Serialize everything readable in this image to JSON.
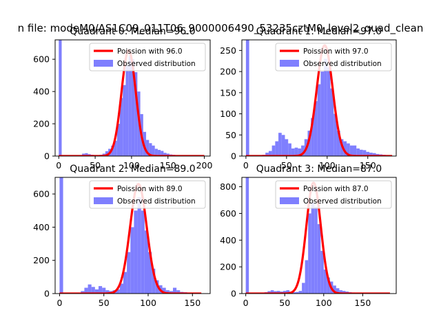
{
  "figure": {
    "suptitle": "n file: modeM0/AS1C09_011T06_9000006490_53235cztM0_level2_quad_clean"
  },
  "colors": {
    "hist": "#7f7ffe",
    "poisson": "#ff0000"
  },
  "chart_data": [
    {
      "type": "bar",
      "title": "Quadrant 0: Median=96.0",
      "xlim": [
        -5,
        208
      ],
      "ylim": [
        0,
        720
      ],
      "xticks": [
        "0",
        "50",
        "100",
        "150",
        "200"
      ],
      "yticks": [
        "0",
        "200",
        "400",
        "600"
      ],
      "legend": [
        "Poission with 96.0",
        "Observed distribution"
      ],
      "bin_width": 4,
      "bins": [
        [
          0,
          720
        ],
        [
          20,
          2
        ],
        [
          24,
          5
        ],
        [
          28,
          6
        ],
        [
          32,
          15
        ],
        [
          36,
          18
        ],
        [
          40,
          12
        ],
        [
          44,
          8
        ],
        [
          48,
          6
        ],
        [
          52,
          5
        ],
        [
          56,
          8
        ],
        [
          60,
          15
        ],
        [
          64,
          30
        ],
        [
          68,
          45
        ],
        [
          72,
          65
        ],
        [
          76,
          95
        ],
        [
          80,
          200
        ],
        [
          84,
          360
        ],
        [
          88,
          440
        ],
        [
          92,
          560
        ],
        [
          96,
          620
        ],
        [
          100,
          600
        ],
        [
          104,
          520
        ],
        [
          108,
          400
        ],
        [
          112,
          260
        ],
        [
          116,
          150
        ],
        [
          120,
          100
        ],
        [
          124,
          80
        ],
        [
          128,
          65
        ],
        [
          132,
          45
        ],
        [
          136,
          38
        ],
        [
          140,
          32
        ],
        [
          144,
          20
        ],
        [
          148,
          15
        ],
        [
          152,
          10
        ],
        [
          156,
          8
        ],
        [
          160,
          6
        ],
        [
          164,
          4
        ],
        [
          168,
          3
        ],
        [
          172,
          2
        ],
        [
          176,
          2
        ],
        [
          180,
          2
        ],
        [
          184,
          1
        ],
        [
          188,
          1
        ],
        [
          192,
          1
        ],
        [
          196,
          1
        ]
      ],
      "poisson": {
        "mean": 96.0,
        "peak": 655,
        "x_range": [
          0,
          200
        ]
      }
    },
    {
      "type": "bar",
      "title": "Quadrant 1: Median=97.0",
      "xlim": [
        -5,
        185
      ],
      "ylim": [
        0,
        275
      ],
      "xticks": [
        "0",
        "50",
        "100",
        "150"
      ],
      "yticks": [
        "0",
        "50",
        "100",
        "150",
        "200",
        "250"
      ],
      "legend": [
        "Poission with 97.0",
        "Observed distribution"
      ],
      "bin_width": 4,
      "bins": [
        [
          0,
          275
        ],
        [
          20,
          3
        ],
        [
          24,
          8
        ],
        [
          28,
          12
        ],
        [
          32,
          25
        ],
        [
          36,
          35
        ],
        [
          40,
          55
        ],
        [
          44,
          50
        ],
        [
          48,
          40
        ],
        [
          52,
          30
        ],
        [
          56,
          18
        ],
        [
          60,
          20
        ],
        [
          64,
          18
        ],
        [
          68,
          25
        ],
        [
          72,
          40
        ],
        [
          76,
          60
        ],
        [
          80,
          90
        ],
        [
          84,
          130
        ],
        [
          88,
          170
        ],
        [
          92,
          200
        ],
        [
          96,
          230
        ],
        [
          100,
          210
        ],
        [
          104,
          160
        ],
        [
          108,
          100
        ],
        [
          112,
          60
        ],
        [
          116,
          40
        ],
        [
          120,
          35
        ],
        [
          124,
          30
        ],
        [
          128,
          25
        ],
        [
          132,
          25
        ],
        [
          136,
          18
        ],
        [
          140,
          15
        ],
        [
          144,
          14
        ],
        [
          148,
          10
        ],
        [
          152,
          8
        ],
        [
          156,
          7
        ],
        [
          160,
          5
        ],
        [
          164,
          4
        ],
        [
          168,
          3
        ],
        [
          172,
          2
        ]
      ],
      "poisson": {
        "mean": 97.0,
        "peak": 262,
        "x_range": [
          0,
          180
        ]
      }
    },
    {
      "type": "bar",
      "title": "Quadrant 2: Median=89.0",
      "xlim": [
        -5,
        170
      ],
      "ylim": [
        0,
        700
      ],
      "xticks": [
        "0",
        "50",
        "100",
        "150"
      ],
      "yticks": [
        "0",
        "200",
        "400",
        "600"
      ],
      "legend": [
        "Poission with 89.0",
        "Observed distribution"
      ],
      "bin_width": 4,
      "bins": [
        [
          0,
          700
        ],
        [
          20,
          3
        ],
        [
          24,
          15
        ],
        [
          28,
          35
        ],
        [
          32,
          55
        ],
        [
          36,
          40
        ],
        [
          40,
          25
        ],
        [
          44,
          45
        ],
        [
          48,
          35
        ],
        [
          52,
          20
        ],
        [
          56,
          15
        ],
        [
          60,
          20
        ],
        [
          64,
          25
        ],
        [
          68,
          60
        ],
        [
          72,
          130
        ],
        [
          76,
          250
        ],
        [
          80,
          400
        ],
        [
          84,
          500
        ],
        [
          88,
          580
        ],
        [
          92,
          500
        ],
        [
          96,
          380
        ],
        [
          100,
          250
        ],
        [
          104,
          150
        ],
        [
          108,
          80
        ],
        [
          112,
          50
        ],
        [
          116,
          35
        ],
        [
          120,
          20
        ],
        [
          124,
          15
        ],
        [
          128,
          35
        ],
        [
          132,
          20
        ],
        [
          136,
          10
        ],
        [
          140,
          8
        ],
        [
          144,
          5
        ],
        [
          148,
          3
        ],
        [
          152,
          2
        ],
        [
          156,
          1
        ]
      ],
      "poisson": {
        "mean": 89.0,
        "peak": 660,
        "x_range": [
          0,
          160
        ]
      }
    },
    {
      "type": "bar",
      "title": "Quadrant 3: Median=87.0",
      "xlim": [
        -5,
        193
      ],
      "ylim": [
        0,
        870
      ],
      "xticks": [
        "0",
        "50",
        "100",
        "150"
      ],
      "yticks": [
        "0",
        "200",
        "400",
        "600",
        "800"
      ],
      "legend": [
        "Poission with 87.0",
        "Observed distribution"
      ],
      "bin_width": 4,
      "bins": [
        [
          0,
          870
        ],
        [
          20,
          5
        ],
        [
          24,
          10
        ],
        [
          28,
          18
        ],
        [
          32,
          25
        ],
        [
          36,
          18
        ],
        [
          40,
          20
        ],
        [
          44,
          15
        ],
        [
          48,
          20
        ],
        [
          52,
          25
        ],
        [
          56,
          15
        ],
        [
          60,
          10
        ],
        [
          64,
          12
        ],
        [
          68,
          20
        ],
        [
          72,
          80
        ],
        [
          76,
          250
        ],
        [
          80,
          600
        ],
        [
          84,
          680
        ],
        [
          88,
          650
        ],
        [
          92,
          520
        ],
        [
          96,
          320
        ],
        [
          100,
          180
        ],
        [
          104,
          120
        ],
        [
          108,
          90
        ],
        [
          112,
          60
        ],
        [
          116,
          40
        ],
        [
          120,
          25
        ],
        [
          124,
          20
        ],
        [
          128,
          15
        ],
        [
          132,
          10
        ],
        [
          136,
          8
        ],
        [
          140,
          5
        ],
        [
          144,
          3
        ],
        [
          148,
          2
        ],
        [
          152,
          2
        ],
        [
          156,
          1
        ],
        [
          160,
          1
        ],
        [
          164,
          1
        ],
        [
          168,
          1
        ],
        [
          172,
          1
        ],
        [
          176,
          1
        ]
      ],
      "poisson": {
        "mean": 87.0,
        "peak": 830,
        "x_range": [
          0,
          185
        ]
      }
    }
  ]
}
